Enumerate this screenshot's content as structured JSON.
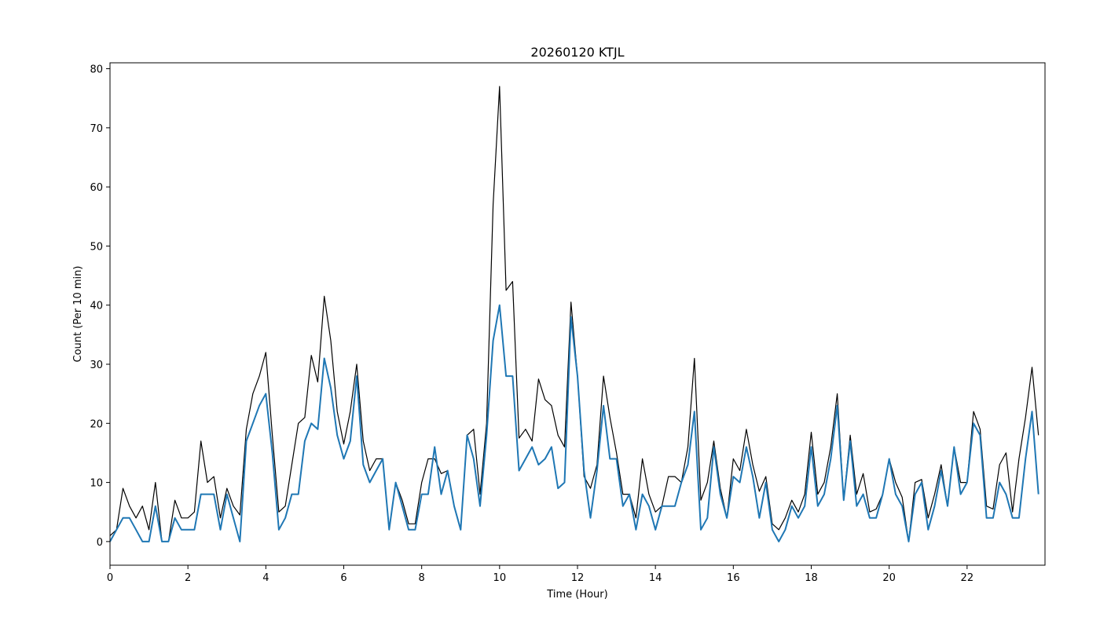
{
  "chart_data": {
    "type": "line",
    "title": "20260120 KTJL",
    "xlabel": "Time (Hour)",
    "ylabel": "Count (Per 10 min)",
    "xlim": [
      0,
      24
    ],
    "ylim": [
      -4,
      81
    ],
    "xticks": [
      0,
      2,
      4,
      6,
      8,
      10,
      12,
      14,
      16,
      18,
      20,
      22
    ],
    "yticks": [
      0,
      10,
      20,
      30,
      40,
      50,
      60,
      70,
      80
    ],
    "grid": false,
    "colors": {
      "total": "#000000",
      "subset": "#1f77b4"
    },
    "x_step_hours": 0.16666667,
    "series": [
      {
        "values": [
          1,
          2,
          9,
          6,
          4,
          6,
          2,
          10,
          0,
          0,
          7,
          4,
          4,
          5,
          17,
          10,
          11,
          4,
          9,
          6,
          4.5,
          19,
          25,
          28,
          32,
          18,
          5,
          6,
          13,
          20,
          21,
          31.5,
          27,
          41.5,
          34,
          22,
          16.5,
          22,
          30,
          17,
          12,
          14,
          14,
          2,
          10,
          7,
          3,
          3,
          10,
          14,
          14,
          11.5,
          12,
          6,
          2,
          18,
          19,
          8,
          20,
          57,
          77,
          42.5,
          44,
          17.5,
          19,
          17,
          27.5,
          24,
          23,
          18,
          16,
          40.5,
          28,
          11,
          9,
          13,
          28,
          21,
          15,
          8,
          8,
          4,
          14,
          8,
          5,
          6,
          11,
          11,
          10,
          16,
          31,
          7,
          10,
          17,
          9,
          4,
          14,
          12,
          19,
          13,
          8.5,
          11,
          3,
          2,
          4,
          7,
          5,
          8,
          18.5,
          8,
          10,
          16,
          25,
          7,
          18,
          8,
          11.5,
          5,
          5.5,
          8,
          14,
          10,
          7.5,
          0,
          10,
          10.5,
          4,
          8,
          13,
          6,
          16,
          10,
          10,
          22,
          19,
          6,
          5.5,
          13,
          15,
          5,
          14,
          21,
          29.5,
          18
        ]
      },
      {
        "values": [
          0,
          2,
          4,
          4,
          2,
          0,
          0,
          6,
          0,
          0,
          4,
          2,
          2,
          2,
          8,
          8,
          8,
          2,
          8,
          4,
          0,
          17,
          20,
          23,
          25,
          15,
          2,
          4,
          8,
          8,
          17,
          20,
          19,
          31,
          26,
          18,
          14,
          17,
          28,
          13,
          10,
          12,
          14,
          2,
          10,
          6,
          2,
          2,
          8,
          8,
          16,
          8,
          12,
          6,
          2,
          18,
          14,
          6,
          18,
          34,
          40,
          28,
          28,
          12,
          14,
          16,
          13,
          14,
          16,
          9,
          10,
          38,
          28,
          12,
          4,
          12,
          23,
          14,
          14,
          6,
          8,
          2,
          8,
          6,
          2,
          6,
          6,
          6,
          10,
          13,
          22,
          2,
          4,
          16,
          8,
          4,
          11,
          10,
          16,
          11,
          4,
          10,
          2,
          0,
          2,
          6,
          4,
          6,
          16,
          6,
          8,
          14,
          23,
          7,
          17,
          6,
          8,
          4,
          4,
          8,
          14,
          8,
          6,
          0,
          8,
          10,
          2,
          6,
          12,
          6,
          16,
          8,
          10,
          20,
          18,
          4,
          4,
          10,
          8,
          4,
          4,
          14,
          22,
          8
        ]
      }
    ]
  }
}
